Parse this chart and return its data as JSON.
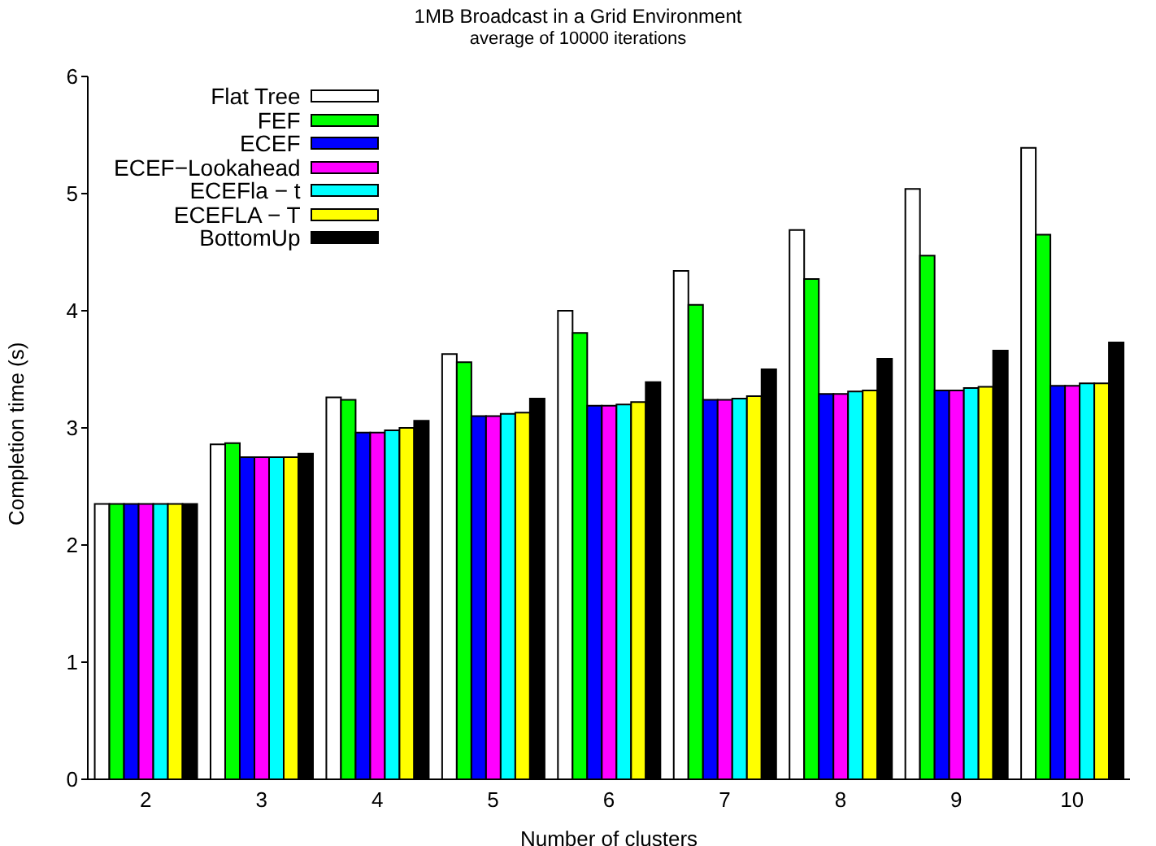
{
  "chart_data": {
    "type": "bar",
    "title": "1MB Broadcast in a Grid Environment",
    "subtitle": "average of 10000 iterations",
    "xlabel": "Number of clusters",
    "ylabel": "Completion time (s)",
    "categories": [
      "2",
      "3",
      "4",
      "5",
      "6",
      "7",
      "8",
      "9",
      "10"
    ],
    "series": [
      {
        "name": "Flat Tree",
        "color": "#ffffff",
        "values": [
          2.35,
          2.86,
          3.26,
          3.63,
          4.0,
          4.34,
          4.69,
          5.04,
          5.39
        ]
      },
      {
        "name": "FEF",
        "color": "#00ff00",
        "values": [
          2.35,
          2.87,
          3.24,
          3.56,
          3.81,
          4.05,
          4.27,
          4.47,
          4.65
        ]
      },
      {
        "name": "ECEF",
        "color": "#0000ff",
        "values": [
          2.35,
          2.75,
          2.96,
          3.1,
          3.19,
          3.24,
          3.29,
          3.32,
          3.36
        ]
      },
      {
        "name": "ECEF−Lookahead",
        "color": "#ff00ff",
        "values": [
          2.35,
          2.75,
          2.96,
          3.1,
          3.19,
          3.24,
          3.29,
          3.32,
          3.36
        ]
      },
      {
        "name": "ECEFla − t",
        "color": "#00ffff",
        "values": [
          2.35,
          2.75,
          2.98,
          3.12,
          3.2,
          3.25,
          3.31,
          3.34,
          3.38
        ]
      },
      {
        "name": "ECEFLA − T",
        "color": "#ffff00",
        "values": [
          2.35,
          2.75,
          3.0,
          3.13,
          3.22,
          3.27,
          3.32,
          3.35,
          3.38
        ]
      },
      {
        "name": "BottomUp",
        "color": "#000000",
        "values": [
          2.35,
          2.78,
          3.06,
          3.25,
          3.39,
          3.5,
          3.59,
          3.66,
          3.73
        ]
      }
    ],
    "ylim": [
      0,
      6
    ],
    "yticks": [
      0,
      1,
      2,
      3,
      4,
      5,
      6
    ],
    "legend": "top left"
  }
}
